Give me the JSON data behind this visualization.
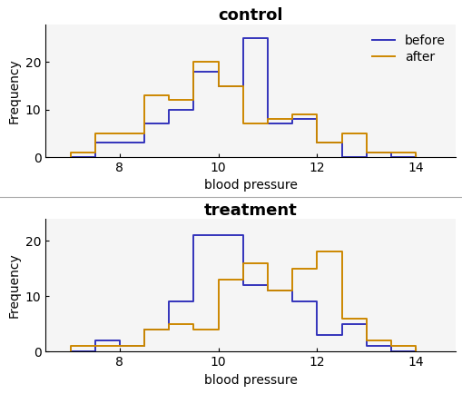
{
  "bins": [
    7.0,
    7.5,
    8.0,
    8.5,
    9.0,
    9.5,
    10.0,
    10.5,
    11.0,
    11.5,
    12.0,
    12.5,
    13.0,
    13.5,
    14.0
  ],
  "control_before_freq": [
    0,
    3,
    3,
    7,
    10,
    18,
    15,
    25,
    7,
    8,
    3,
    0,
    1,
    0
  ],
  "control_after_freq": [
    1,
    5,
    5,
    13,
    12,
    20,
    15,
    7,
    8,
    9,
    3,
    5,
    1,
    1
  ],
  "treat_before_freq": [
    0,
    2,
    1,
    4,
    9,
    21,
    21,
    12,
    11,
    9,
    3,
    5,
    1,
    0
  ],
  "treat_after_freq": [
    1,
    1,
    1,
    4,
    5,
    4,
    13,
    16,
    11,
    15,
    18,
    6,
    2,
    1
  ],
  "color_before": "#3333bb",
  "color_after": "#cc8800",
  "title_control": "control",
  "title_treat": "treatment",
  "xlabel": "blood pressure",
  "ylabel": "Frequency",
  "xlim": [
    6.5,
    14.8
  ],
  "ylim_control": [
    0,
    26
  ],
  "ylim_treat": [
    0,
    22
  ],
  "xticks": [
    8,
    10,
    12,
    14
  ],
  "yticks": [
    0,
    10,
    20
  ],
  "title_fontsize": 13,
  "label_fontsize": 10,
  "linewidth": 1.4,
  "bg_color": "#f5f5f5"
}
